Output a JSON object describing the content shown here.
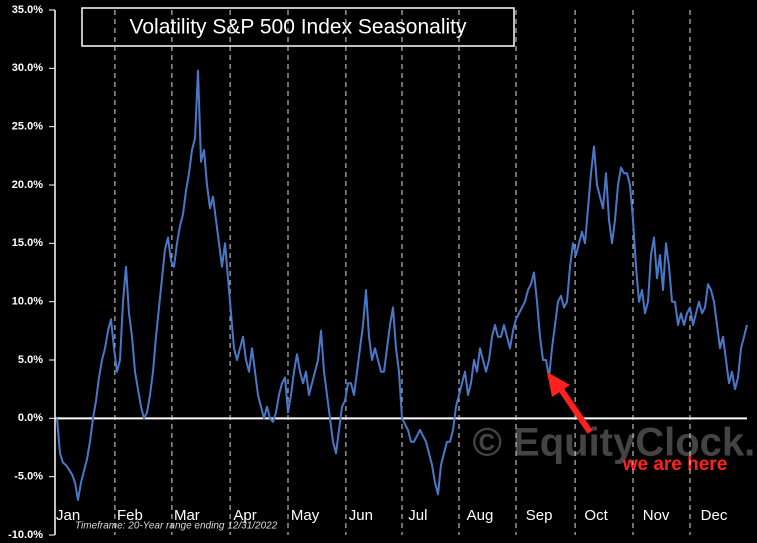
{
  "chart_data": {
    "type": "line",
    "title": "Volatility S&P 500 Index Seasonality",
    "footnote": "Timeframe: 20-Year range ending 12/31/2022",
    "watermark": "© EquityClock.com",
    "annotation": "we are here",
    "xlim": [
      0,
      230
    ],
    "xticks": [
      {
        "value": 3.7,
        "label": "Jan"
      },
      {
        "value": 24.3,
        "label": "Feb"
      },
      {
        "value": 43.3,
        "label": "Mar"
      },
      {
        "value": 62.7,
        "label": "Apr"
      },
      {
        "value": 82.7,
        "label": "May"
      },
      {
        "value": 101.3,
        "label": "Jun"
      },
      {
        "value": 120.3,
        "label": "Jul"
      },
      {
        "value": 141,
        "label": "Aug"
      },
      {
        "value": 160.7,
        "label": "Sep"
      },
      {
        "value": 179.7,
        "label": "Oct"
      },
      {
        "value": 199.7,
        "label": "Nov"
      },
      {
        "value": 219,
        "label": "Dec"
      }
    ],
    "month_boundaries": [
      19.3,
      38.3,
      57.7,
      77,
      96.3,
      115,
      134,
      153,
      172.7,
      192,
      211
    ],
    "ylim": [
      -10,
      35
    ],
    "yticks": [
      {
        "value": -10,
        "label": "-10.0%"
      },
      {
        "value": -5,
        "label": "-5.0%"
      },
      {
        "value": 0,
        "label": "0.0%"
      },
      {
        "value": 5,
        "label": "5.0%"
      },
      {
        "value": 10,
        "label": "10.0%"
      },
      {
        "value": 15,
        "label": "15.0%"
      },
      {
        "value": 20,
        "label": "20.0%"
      },
      {
        "value": 25,
        "label": "25.0%"
      },
      {
        "value": 30,
        "label": "30.0%"
      },
      {
        "value": 35,
        "label": "35.0%"
      }
    ],
    "series": [
      {
        "color": "#4a78c8",
        "values": [
          0,
          -3,
          -3.8,
          -4,
          -4.4,
          -4.8,
          -5.5,
          -7,
          -5.5,
          -4.5,
          -3.5,
          -2,
          0,
          1.5,
          3.5,
          5,
          6,
          7.5,
          8.5,
          6,
          4,
          5,
          10,
          13,
          9,
          7,
          4,
          2.5,
          1,
          0,
          0.5,
          2,
          4,
          7,
          9.5,
          12,
          14.5,
          15.5,
          13.5,
          13,
          15,
          16.5,
          17.5,
          19.5,
          21,
          23,
          24,
          29.8,
          22,
          23,
          20,
          18,
          19,
          17,
          15,
          13,
          15,
          12,
          9,
          6,
          5,
          6,
          7,
          5,
          4,
          6,
          4,
          2,
          1,
          0,
          1,
          0,
          -0.3,
          0.5,
          2,
          3,
          3.5,
          0.5,
          2,
          4,
          5.5,
          4,
          3,
          4,
          2,
          3,
          4,
          5,
          7.5,
          4,
          2,
          0,
          -2,
          -3,
          -1,
          1,
          1.5,
          3,
          3,
          2,
          4,
          6,
          8,
          11,
          7,
          5,
          6,
          5,
          4,
          4,
          6,
          8,
          9.5,
          6,
          4,
          0,
          -0.5,
          -1,
          -2,
          -2,
          -1.5,
          -1,
          -1.5,
          -2,
          -3,
          -4,
          -5.5,
          -6.5,
          -4,
          -3,
          -2,
          -2,
          -1,
          1,
          2,
          3,
          4,
          2,
          3,
          5,
          4,
          6,
          5,
          4,
          5,
          7,
          8,
          7,
          7,
          8,
          7,
          6,
          7.5,
          8.5,
          9,
          9.5,
          10,
          11,
          11.5,
          12.5,
          10,
          7,
          5,
          5,
          3.5,
          6,
          8,
          10,
          10.5,
          9.5,
          10,
          13,
          15,
          14,
          15,
          16,
          15,
          18,
          21,
          23.3,
          20,
          19,
          18,
          21,
          17,
          15,
          17,
          20,
          21.5,
          21,
          21,
          20,
          17,
          13,
          10,
          11,
          9,
          10,
          14,
          15.5,
          12,
          14,
          11,
          15,
          13,
          10,
          10,
          8,
          9,
          8,
          9,
          9.5,
          8,
          9,
          10,
          9,
          9.5,
          11.5,
          11,
          10,
          8,
          6,
          7,
          5,
          3,
          4,
          2.5,
          3.5,
          6,
          7,
          8
        ]
      }
    ]
  }
}
